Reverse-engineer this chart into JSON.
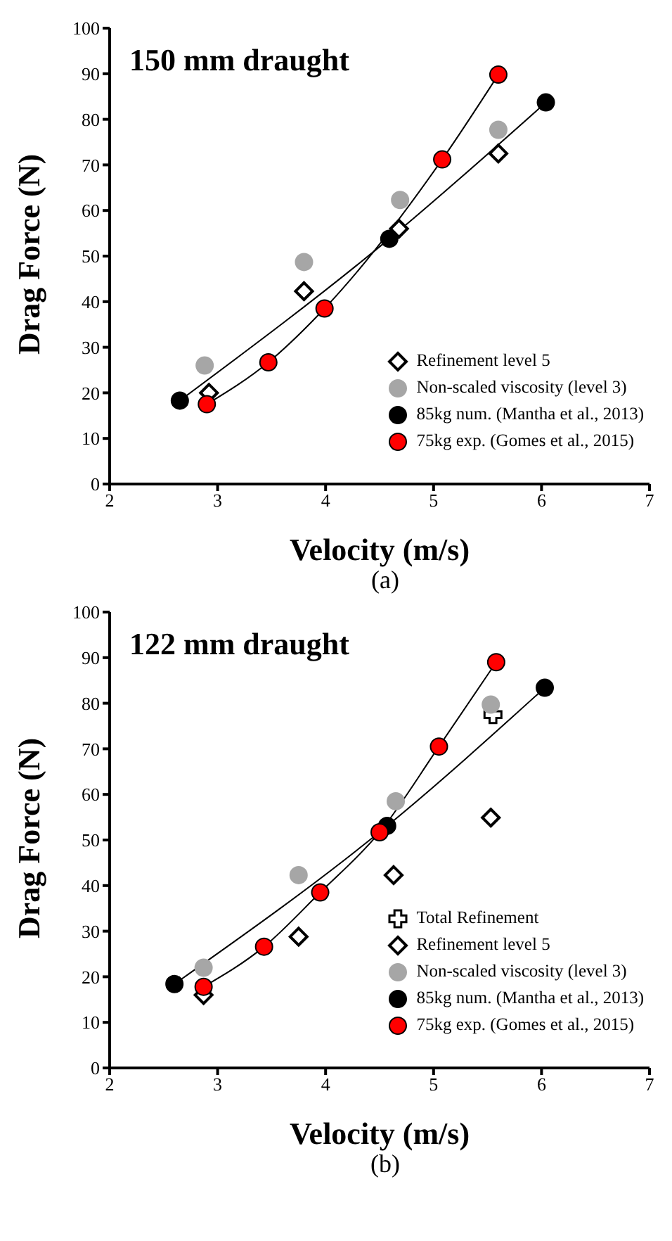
{
  "chart_data": [
    {
      "type": "scatter",
      "title": "150 mm draught",
      "xlabel": "Velocity (m/s)",
      "ylabel": "Drag Force (N)",
      "xlim": [
        2,
        7
      ],
      "xticks": [
        2,
        3,
        4,
        5,
        6,
        7
      ],
      "ylim": [
        0,
        100
      ],
      "yticks": [
        0,
        10,
        20,
        30,
        40,
        50,
        60,
        70,
        80,
        90,
        100
      ],
      "legend": "bottom right",
      "annotations": [
        "(a)"
      ],
      "series": [
        {
          "name": "Refinement level 5",
          "marker": "diamond",
          "color": "#000000",
          "x": [
            2.92,
            3.8,
            4.68,
            5.6
          ],
          "values": [
            20,
            42.3,
            56,
            72.5
          ]
        },
        {
          "name": "Non-scaled viscosity (level 3)",
          "marker": "circle",
          "color": "#a6a6a6",
          "x": [
            2.88,
            3.8,
            4.69,
            5.6
          ],
          "values": [
            26,
            48.7,
            62.3,
            77.7
          ]
        },
        {
          "name": "85kg num. (Mantha et al., 2013)",
          "type": "line",
          "marker": "circle",
          "color": "#000000",
          "x": [
            2.65,
            4.59,
            6.04
          ],
          "values": [
            18.3,
            53.8,
            83.7
          ]
        },
        {
          "name": "75kg exp. (Gomes et al., 2015)",
          "type": "line",
          "marker": "circle",
          "color": "#ff0000",
          "x": [
            2.9,
            3.47,
            3.99,
            5.08,
            5.6
          ],
          "values": [
            17.5,
            26.7,
            38.5,
            71.2,
            89.8
          ]
        }
      ]
    },
    {
      "type": "scatter",
      "title": "122 mm draught",
      "xlabel": "Velocity (m/s)",
      "ylabel": "Drag Force (N)",
      "xlim": [
        2,
        7
      ],
      "xticks": [
        2,
        3,
        4,
        5,
        6,
        7
      ],
      "ylim": [
        0,
        100
      ],
      "yticks": [
        0,
        10,
        20,
        30,
        40,
        50,
        60,
        70,
        80,
        90,
        100
      ],
      "legend": "bottom right",
      "annotations": [
        "(b)"
      ],
      "series": [
        {
          "name": "Total Refinement",
          "marker": "cross",
          "color": "#000000",
          "x": [
            5.55
          ],
          "values": [
            77.5
          ]
        },
        {
          "name": "Refinement level 5",
          "marker": "diamond",
          "color": "#000000",
          "x": [
            2.87,
            3.75,
            4.63,
            5.53
          ],
          "values": [
            16,
            28.8,
            42.3,
            54.9
          ]
        },
        {
          "name": "Non-scaled viscosity (level 3)",
          "marker": "circle",
          "color": "#a6a6a6",
          "x": [
            2.87,
            3.75,
            4.65,
            5.53
          ],
          "values": [
            22,
            42.3,
            58.5,
            79.7
          ]
        },
        {
          "name": "85kg num. (Mantha et al., 2013)",
          "type": "line",
          "marker": "circle",
          "color": "#000000",
          "x": [
            2.6,
            4.57,
            6.03
          ],
          "values": [
            18.4,
            53.1,
            83.4
          ]
        },
        {
          "name": "75kg exp. (Gomes et al., 2015)",
          "type": "line",
          "marker": "circle",
          "color": "#ff0000",
          "x": [
            2.87,
            3.43,
            3.95,
            4.5,
            5.05,
            5.58
          ],
          "values": [
            17.8,
            26.6,
            38.5,
            51.7,
            70.5,
            89
          ]
        }
      ]
    }
  ]
}
